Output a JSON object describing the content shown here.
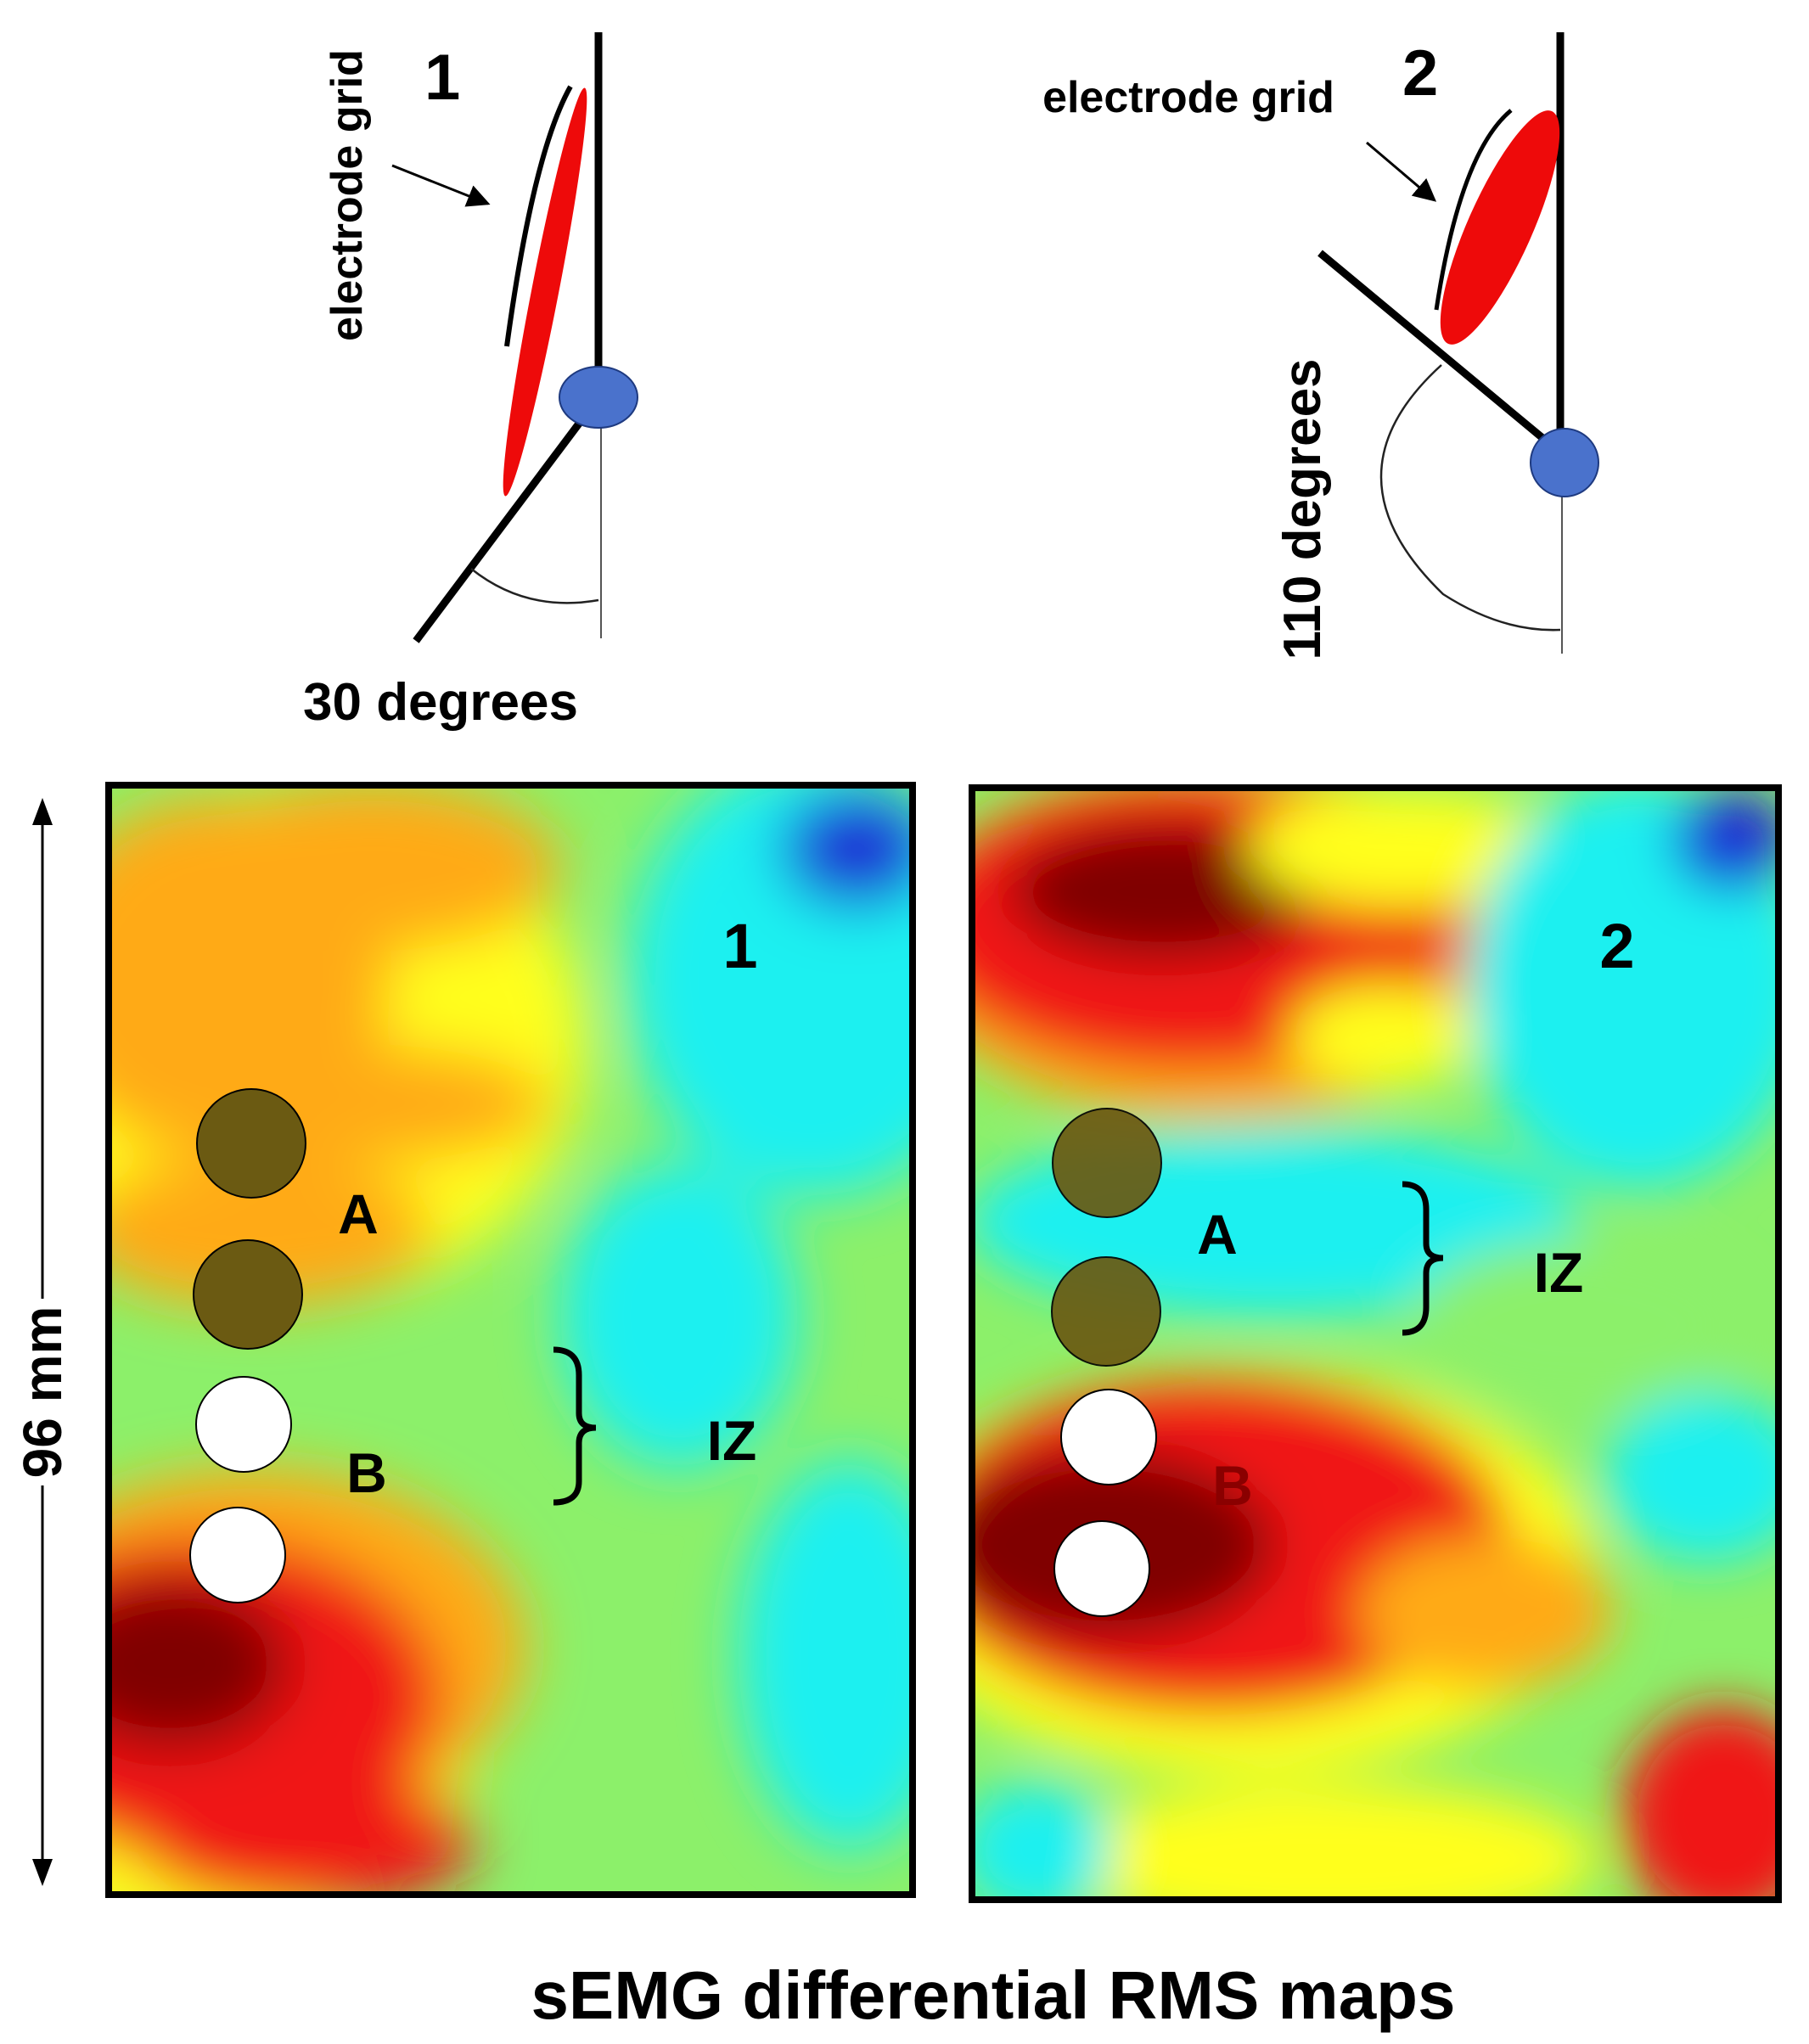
{
  "colors": {
    "muscle": "#ee0a0a",
    "joint": "#4a72cc",
    "joint_stroke": "#1e3a80",
    "line": "#000000",
    "electrode_dark": "#6b5a12",
    "electrode_white": "#ffffff",
    "label_red_b": "#8a0000",
    "map_blue": "#1d2fd6",
    "map_cyan": "#1df0f0",
    "map_green": "#8cf06a",
    "map_yellow": "#ffff1d",
    "map_orange": "#ffaa14",
    "map_red": "#f01414",
    "map_darkred": "#800000"
  },
  "schematic_1": {
    "number": "1",
    "grid_label": "electrode grid",
    "angle_label": "30 degrees"
  },
  "schematic_2": {
    "number": "2",
    "grid_label": "electrode grid",
    "angle_label": "110 degrees"
  },
  "map_1": {
    "number": "1",
    "label_a": "A",
    "label_b": "B",
    "label_iz": "IZ"
  },
  "map_2": {
    "number": "2",
    "label_a": "A",
    "label_b": "B",
    "label_iz": "IZ"
  },
  "scale": {
    "length_label": "96 mm"
  },
  "caption": "sEMG differential RMS maps"
}
